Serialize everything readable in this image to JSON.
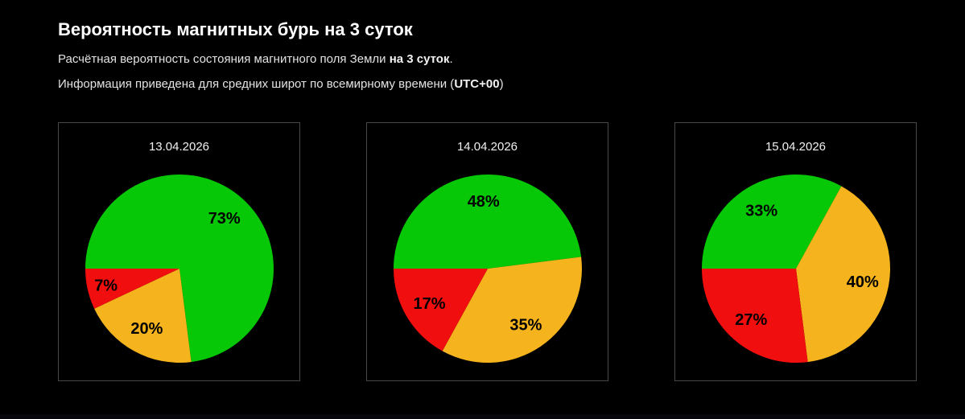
{
  "page": {
    "title": "Вероятность магнитных бурь на 3 суток",
    "subtitle_1_prefix": "Расчётная вероятность состояния магнитного поля Земли ",
    "subtitle_1_bold": "на 3 суток",
    "subtitle_1_suffix": ".",
    "subtitle_2_prefix": "Информация приведена для средних широт по всемирному времени (",
    "subtitle_2_bold": "UTC+00",
    "subtitle_2_suffix": ")"
  },
  "colors": {
    "background": "#000000",
    "panel_border": "#484848",
    "title_text": "#ffffff",
    "body_text": "#e3e3e3",
    "slice_label_text": "#000000",
    "green": "#06c806",
    "orange": "#f5b31d",
    "red": "#f10e0e"
  },
  "chart_data": [
    {
      "type": "pie",
      "title": "13.04.2026",
      "start_angle_clockwise_from_top": 270,
      "direction": "clockwise",
      "labels_inside": true,
      "slices": [
        {
          "value": 73,
          "label": "73%",
          "color": "#06c806"
        },
        {
          "value": 20,
          "label": "20%",
          "color": "#f5b31d"
        },
        {
          "value": 7,
          "label": "7%",
          "color": "#f10e0e"
        }
      ]
    },
    {
      "type": "pie",
      "title": "14.04.2026",
      "start_angle_clockwise_from_top": 270,
      "direction": "clockwise",
      "labels_inside": true,
      "slices": [
        {
          "value": 48,
          "label": "48%",
          "color": "#06c806"
        },
        {
          "value": 35,
          "label": "35%",
          "color": "#f5b31d"
        },
        {
          "value": 17,
          "label": "17%",
          "color": "#f10e0e"
        }
      ]
    },
    {
      "type": "pie",
      "title": "15.04.2026",
      "start_angle_clockwise_from_top": 270,
      "direction": "clockwise",
      "labels_inside": true,
      "slices": [
        {
          "value": 33,
          "label": "33%",
          "color": "#06c806"
        },
        {
          "value": 40,
          "label": "40%",
          "color": "#f5b31d"
        },
        {
          "value": 27,
          "label": "27%",
          "color": "#f10e0e"
        }
      ]
    }
  ]
}
